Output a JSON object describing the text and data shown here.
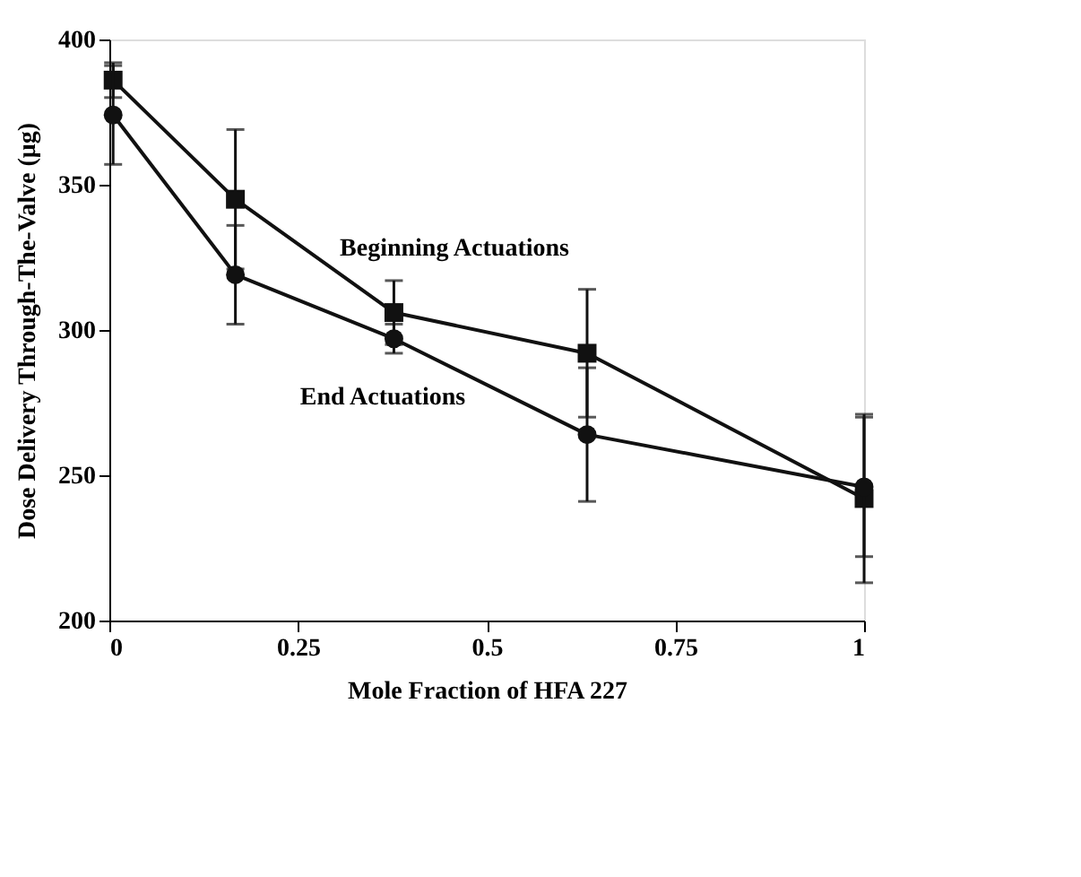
{
  "chart_data": {
    "type": "line",
    "xlabel": "Mole Fraction of HFA 227",
    "ylabel": "Dose Delivery Through-The-Valve (μg)",
    "x": [
      0.005,
      0.167,
      0.377,
      0.633,
      1.0
    ],
    "series": [
      {
        "name": "Beginning Actuations",
        "color": "#111111",
        "marker": "square",
        "values": [
          386,
          345,
          306,
          292,
          242
        ],
        "errors": [
          6,
          24,
          11,
          22,
          29
        ]
      },
      {
        "name": "End Actuations",
        "color": "#111111",
        "marker": "circle",
        "values": [
          374,
          319,
          297,
          264,
          246
        ],
        "errors": [
          17,
          17,
          5,
          23,
          24
        ]
      }
    ],
    "xlim": [
      0,
      1
    ],
    "ylim": [
      200,
      400
    ],
    "xticks": [
      0,
      0.25,
      0.5,
      0.75,
      1
    ],
    "yticks": [
      200,
      250,
      300,
      350,
      400
    ],
    "grid": false,
    "line_style": "solid"
  }
}
